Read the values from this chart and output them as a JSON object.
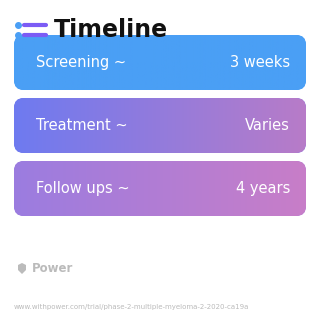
{
  "title": "Timeline",
  "background_color": "#ffffff",
  "rows": [
    {
      "label": "Screening ~",
      "value": "3 weeks",
      "color_left": "#4a9ff5",
      "color_right": "#4a9ff5"
    },
    {
      "label": "Treatment ~",
      "value": "Varies",
      "color_left": "#6e7af0",
      "color_right": "#b87cc8"
    },
    {
      "label": "Follow ups ~",
      "value": "4 years",
      "color_left": "#9b7ce0",
      "color_right": "#c87ec8"
    }
  ],
  "watermark_text": "Power",
  "url_text": "www.withpower.com/trial/phase-2-multiple-myeloma-2-2020-ca19a",
  "title_fontsize": 17,
  "label_fontsize": 10.5,
  "value_fontsize": 10.5,
  "watermark_fontsize": 8.5,
  "url_fontsize": 5,
  "icon_color": "#7b5cf5",
  "dot_color": "#4a9ff5",
  "text_color_dark": "#111111",
  "text_color_white": "#ffffff",
  "footer_color": "#bbbbbb"
}
